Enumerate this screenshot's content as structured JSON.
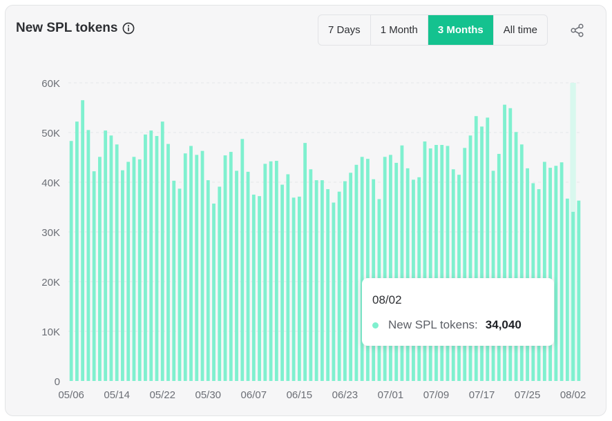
{
  "header": {
    "title": "New SPL tokens",
    "tabs": [
      {
        "label": "7 Days",
        "active": false
      },
      {
        "label": "1 Month",
        "active": false
      },
      {
        "label": "3 Months",
        "active": true
      },
      {
        "label": "All time",
        "active": false
      }
    ]
  },
  "icons": {
    "info": "info-icon",
    "share": "share-icon"
  },
  "colors": {
    "bar": "#7ff0cf",
    "accent": "#14c28f",
    "highlight": "#d8f8ee"
  },
  "tooltip": {
    "date": "08/02",
    "series_label": "New SPL tokens:",
    "value": "34,040"
  },
  "chart_data": {
    "type": "bar",
    "title": "New SPL tokens",
    "xlabel": "",
    "ylabel": "",
    "ylim": [
      0,
      60000
    ],
    "yticks": [
      "0",
      "10K",
      "20K",
      "30K",
      "40K",
      "50K",
      "60K"
    ],
    "xticks": [
      "05/06",
      "05/14",
      "05/22",
      "05/30",
      "06/07",
      "06/15",
      "06/23",
      "07/01",
      "07/09",
      "07/17",
      "07/25",
      "08/02"
    ],
    "grid": true,
    "highlighted_category": "08/02",
    "categories": [
      "05/06",
      "05/07",
      "05/08",
      "05/09",
      "05/10",
      "05/11",
      "05/12",
      "05/13",
      "05/14",
      "05/15",
      "05/16",
      "05/17",
      "05/18",
      "05/19",
      "05/20",
      "05/21",
      "05/22",
      "05/23",
      "05/24",
      "05/25",
      "05/26",
      "05/27",
      "05/28",
      "05/29",
      "05/30",
      "05/31",
      "06/01",
      "06/02",
      "06/03",
      "06/04",
      "06/05",
      "06/06",
      "06/07",
      "06/08",
      "06/09",
      "06/10",
      "06/11",
      "06/12",
      "06/13",
      "06/14",
      "06/15",
      "06/16",
      "06/17",
      "06/18",
      "06/19",
      "06/20",
      "06/21",
      "06/22",
      "06/23",
      "06/24",
      "06/25",
      "06/26",
      "06/27",
      "06/28",
      "06/29",
      "06/30",
      "07/01",
      "07/02",
      "07/03",
      "07/04",
      "07/05",
      "07/06",
      "07/07",
      "07/08",
      "07/09",
      "07/10",
      "07/11",
      "07/12",
      "07/13",
      "07/14",
      "07/15",
      "07/16",
      "07/17",
      "07/18",
      "07/19",
      "07/20",
      "07/21",
      "07/22",
      "07/23",
      "07/24",
      "07/25",
      "07/26",
      "07/27",
      "07/28",
      "07/29",
      "07/30",
      "07/31",
      "08/01",
      "08/02",
      "08/03"
    ],
    "values": [
      48300,
      52200,
      56500,
      50500,
      42200,
      45100,
      50400,
      49400,
      47600,
      42400,
      44100,
      45100,
      44600,
      49600,
      50400,
      49300,
      52200,
      47700,
      40300,
      38700,
      45800,
      47300,
      45500,
      46300,
      40400,
      35700,
      39100,
      45400,
      46100,
      42300,
      48700,
      42100,
      37500,
      37200,
      43700,
      44200,
      44300,
      39500,
      41600,
      36900,
      37100,
      47900,
      42600,
      40400,
      40400,
      38600,
      35900,
      38100,
      40200,
      41900,
      43500,
      45100,
      44700,
      40600,
      36600,
      45100,
      45500,
      43900,
      47400,
      42800,
      40500,
      41000,
      48200,
      46800,
      47500,
      47500,
      47300,
      42600,
      41500,
      46900,
      49400,
      53300,
      51200,
      53000,
      42300,
      45700,
      55600,
      54900,
      50100,
      47600,
      42800,
      39800,
      38600,
      44100,
      42900,
      43300,
      44000,
      36700,
      34040,
      36300
    ]
  }
}
